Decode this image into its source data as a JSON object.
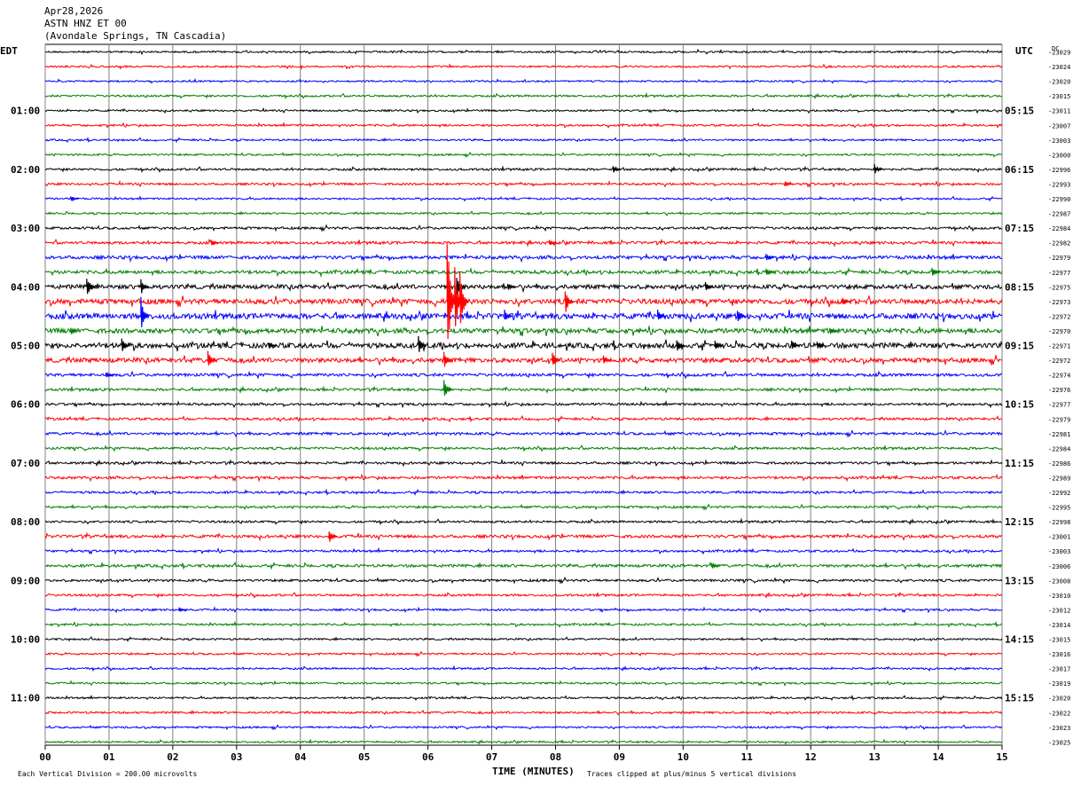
{
  "header": {
    "date": "Apr28,2026",
    "station": "ASTN HNZ ET 00",
    "location": "(Avondale Springs, TN Cascadia)"
  },
  "chart_data": {
    "type": "helicorder",
    "left_axis_label": "EDT",
    "right_axis_label": "UTC",
    "dc_label": "DC",
    "xlabel": "TIME (MINUTES)",
    "x_ticks": [
      "00",
      "01",
      "02",
      "03",
      "04",
      "05",
      "06",
      "07",
      "08",
      "09",
      "10",
      "11",
      "12",
      "13",
      "14",
      "15"
    ],
    "xlim": [
      0,
      15
    ],
    "line_colors": [
      "#000000",
      "#ff0000",
      "#0000ff",
      "#007f00"
    ],
    "grid_color": "#808080",
    "left_time_labels": [
      {
        "row": 4,
        "text": "01:00"
      },
      {
        "row": 8,
        "text": "02:00"
      },
      {
        "row": 12,
        "text": "03:00"
      },
      {
        "row": 16,
        "text": "04:00"
      },
      {
        "row": 20,
        "text": "05:00"
      },
      {
        "row": 24,
        "text": "06:00"
      },
      {
        "row": 28,
        "text": "07:00"
      },
      {
        "row": 32,
        "text": "08:00"
      },
      {
        "row": 36,
        "text": "09:00"
      },
      {
        "row": 40,
        "text": "10:00"
      },
      {
        "row": 44,
        "text": "11:00"
      }
    ],
    "right_time_labels": [
      {
        "row": 4,
        "text": "05:15"
      },
      {
        "row": 8,
        "text": "06:15"
      },
      {
        "row": 12,
        "text": "07:15"
      },
      {
        "row": 16,
        "text": "08:15"
      },
      {
        "row": 20,
        "text": "09:15"
      },
      {
        "row": 24,
        "text": "10:15"
      },
      {
        "row": 28,
        "text": "11:15"
      },
      {
        "row": 32,
        "text": "12:15"
      },
      {
        "row": 36,
        "text": "13:15"
      },
      {
        "row": 40,
        "text": "14:15"
      },
      {
        "row": 44,
        "text": "15:15"
      }
    ],
    "dc_offsets": [
      "-23029",
      "-23024",
      "-23020",
      "-23015",
      "-23011",
      "-23007",
      "-23003",
      "-23000",
      "-22996",
      "-22993",
      "-22990",
      "-22987",
      "-22984",
      "-22982",
      "-22979",
      "-22977",
      "-22975",
      "-22973",
      "-22972",
      "-22970",
      "-22971",
      "-22972",
      "-22974",
      "-22976",
      "-22977",
      "-22979",
      "-22981",
      "-22984",
      "-22986",
      "-22989",
      "-22992",
      "-22995",
      "-22998",
      "-23001",
      "-23003",
      "-23006",
      "-23008",
      "-23010",
      "-23012",
      "-23014",
      "-23015",
      "-23016",
      "-23017",
      "-23019",
      "-23020",
      "-23022",
      "-23023",
      "-23025"
    ],
    "noise_levels": [
      1.0,
      1.0,
      0.9,
      1.1,
      1.0,
      1.1,
      1.0,
      1.0,
      1.2,
      1.2,
      1.0,
      1.0,
      1.3,
      1.5,
      1.8,
      1.8,
      2.3,
      2.8,
      3.0,
      2.6,
      2.8,
      2.5,
      1.6,
      1.4,
      1.3,
      1.3,
      1.4,
      1.3,
      1.3,
      1.4,
      1.2,
      1.2,
      1.2,
      1.6,
      1.2,
      1.5,
      1.3,
      1.2,
      1.1,
      1.1,
      1.0,
      1.0,
      1.0,
      1.0,
      1.0,
      1.1,
      1.0,
      1.0
    ],
    "events": [
      {
        "row": 8,
        "minute": 8.9,
        "amp": 6
      },
      {
        "row": 8,
        "minute": 13.0,
        "amp": 6
      },
      {
        "row": 9,
        "minute": 11.6,
        "amp": 3
      },
      {
        "row": 10,
        "minute": 0.4,
        "amp": 4
      },
      {
        "row": 13,
        "minute": 2.6,
        "amp": 4
      },
      {
        "row": 13,
        "minute": 7.9,
        "amp": 4
      },
      {
        "row": 14,
        "minute": 11.3,
        "amp": 4
      },
      {
        "row": 15,
        "minute": 11.3,
        "amp": 6
      },
      {
        "row": 15,
        "minute": 13.9,
        "amp": 7
      },
      {
        "row": 16,
        "minute": 0.65,
        "amp": 14
      },
      {
        "row": 16,
        "minute": 1.5,
        "amp": 10
      },
      {
        "row": 16,
        "minute": 6.45,
        "amp": 12
      },
      {
        "row": 16,
        "minute": 7.25,
        "amp": 5
      },
      {
        "row": 16,
        "minute": 10.35,
        "amp": 7
      },
      {
        "row": 17,
        "minute": 6.3,
        "amp": 80
      },
      {
        "row": 17,
        "minute": 6.42,
        "amp": 45
      },
      {
        "row": 17,
        "minute": 6.5,
        "amp": 40
      },
      {
        "row": 17,
        "minute": 8.15,
        "amp": 16
      },
      {
        "row": 17,
        "minute": 12.5,
        "amp": 5
      },
      {
        "row": 18,
        "minute": 1.5,
        "amp": 22
      },
      {
        "row": 18,
        "minute": 7.2,
        "amp": 8
      },
      {
        "row": 18,
        "minute": 9.6,
        "amp": 8
      },
      {
        "row": 18,
        "minute": 10.85,
        "amp": 10
      },
      {
        "row": 19,
        "minute": 0.4,
        "amp": 5
      },
      {
        "row": 19,
        "minute": 12.3,
        "amp": 5
      },
      {
        "row": 20,
        "minute": 1.2,
        "amp": 9
      },
      {
        "row": 20,
        "minute": 3.5,
        "amp": 5
      },
      {
        "row": 20,
        "minute": 5.85,
        "amp": 12
      },
      {
        "row": 20,
        "minute": 9.9,
        "amp": 9
      },
      {
        "row": 20,
        "minute": 10.5,
        "amp": 6
      },
      {
        "row": 20,
        "minute": 11.7,
        "amp": 7
      },
      {
        "row": 20,
        "minute": 12.1,
        "amp": 6
      },
      {
        "row": 21,
        "minute": 2.55,
        "amp": 12
      },
      {
        "row": 21,
        "minute": 6.25,
        "amp": 10
      },
      {
        "row": 21,
        "minute": 7.95,
        "amp": 10
      },
      {
        "row": 21,
        "minute": 8.75,
        "amp": 6
      },
      {
        "row": 22,
        "minute": 0.95,
        "amp": 4
      },
      {
        "row": 23,
        "minute": 6.25,
        "amp": 12
      },
      {
        "row": 33,
        "minute": 4.45,
        "amp": 8
      },
      {
        "row": 35,
        "minute": 10.45,
        "amp": 4
      },
      {
        "row": 38,
        "minute": 2.1,
        "amp": 3
      }
    ]
  },
  "footer": {
    "vertical_division": "Each Vertical Division =  200.00 microvolts",
    "clip_note": "Traces clipped at plus/minus 5 vertical divisions"
  }
}
